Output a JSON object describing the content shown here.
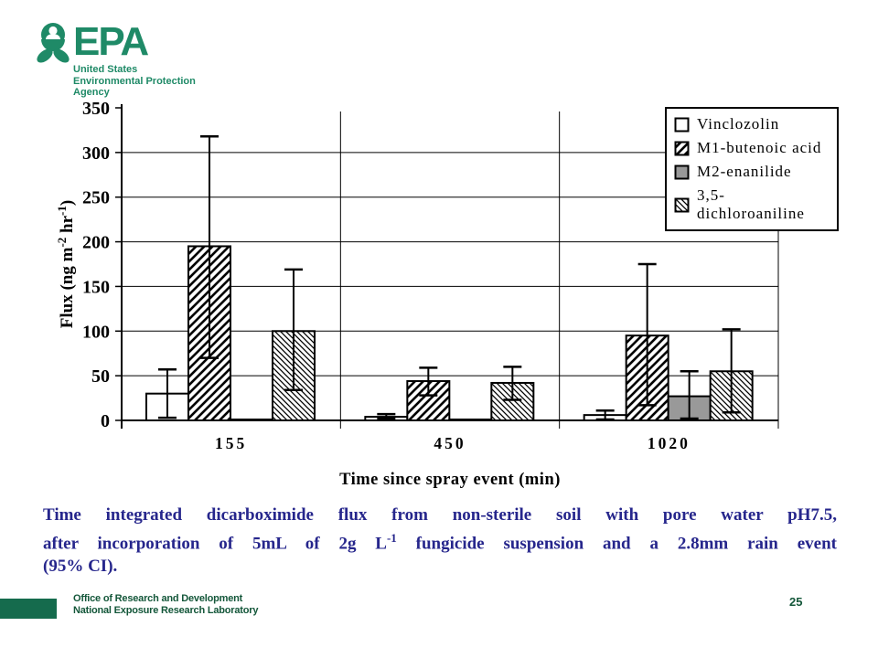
{
  "epa": {
    "acronym": "EPA",
    "tagline_line1": "United States",
    "tagline_line2": "Environmental Protection",
    "tagline_line3": "Agency"
  },
  "colors": {
    "epa_green": "#1f8a67",
    "footer_bar_green": "#156b4d",
    "footer_text_green": "#14573a",
    "caption_navy": "#26268c",
    "bar_gray": "#999999",
    "chart_line": "#000000"
  },
  "chart_data": {
    "type": "bar",
    "title": "",
    "xlabel": "Time since spray event (min)",
    "ylabel_parts": [
      {
        "text": "Flux (ng m"
      },
      {
        "sup": "-2"
      },
      {
        "text": " hr"
      },
      {
        "sup": "-1"
      },
      {
        "text": ")"
      }
    ],
    "categories": [
      "155",
      "450",
      "1020"
    ],
    "ylim": [
      0,
      350
    ],
    "ytick_step": 50,
    "grid": "horizontal gridlines every 50; vertical category separator lines",
    "legend_position": "top-right overlay box",
    "series": [
      {
        "name": "Vinclozolin",
        "pattern": "none",
        "values": [
          30,
          4,
          6
        ],
        "err_low": [
          3,
          2,
          1
        ],
        "err_high": [
          57,
          7,
          11
        ]
      },
      {
        "name": "M1-butenoic acid",
        "pattern": "hatch-forward",
        "values": [
          195,
          44,
          95
        ],
        "err_low": [
          70,
          28,
          17
        ],
        "err_high": [
          318,
          59,
          175
        ]
      },
      {
        "name": "M2-enanilide",
        "pattern": "solid-gray",
        "values": [
          1,
          1,
          27
        ],
        "err_low": [
          null,
          null,
          2
        ],
        "err_high": [
          null,
          null,
          55
        ]
      },
      {
        "name": "3,5-dichloroaniline",
        "pattern": "hatch-back",
        "values": [
          100,
          42,
          55
        ],
        "err_low": [
          34,
          23,
          9
        ],
        "err_high": [
          169,
          60,
          102
        ]
      }
    ]
  },
  "caption": {
    "line1": "Time integrated dicarboximide flux from non-sterile soil with pore water pH7.5,",
    "line2_pre": "after incorporation of 5mL of 2g L",
    "line2_sup": "-1",
    "line2_post": " fungicide suspension and a 2.8mm rain event",
    "line3": "(95% CI)."
  },
  "footer": {
    "office_line1": "Office of Research and Development",
    "office_line2": "National Exposure Research Laboratory",
    "page_number": "25"
  }
}
